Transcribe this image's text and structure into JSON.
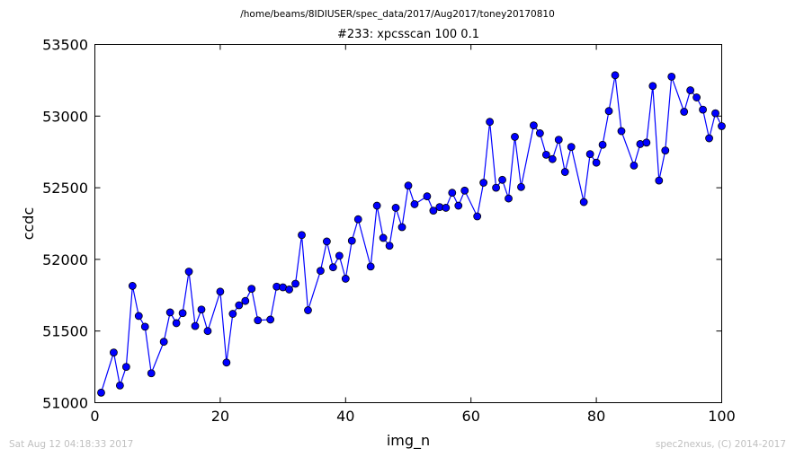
{
  "header": {
    "file_path": "/home/beams/8IDIUSER/spec_data/2017/Aug2017/toney20170810"
  },
  "footer": {
    "timestamp": "Sat Aug 12 04:18:33 2017",
    "credit": "spec2nexus, (C) 2014-2017"
  },
  "colors": {
    "series_line": "#0000ff",
    "marker_fill": "#0000ff",
    "marker_edge": "#000000",
    "frame": "#000000",
    "background": "#ffffff",
    "footer_text": "#c0c0c0"
  },
  "chart_data": {
    "type": "line",
    "title": "#233: xpcsscan 100 0.1",
    "xlabel": "img_n",
    "ylabel": "ccdc",
    "xlim": [
      0,
      100
    ],
    "ylim": [
      51000,
      53500
    ],
    "x_ticks": [
      0,
      20,
      40,
      60,
      80,
      100
    ],
    "y_ticks": [
      51000,
      51500,
      52000,
      52500,
      53000,
      53500
    ],
    "x_tick_labels": [
      "0",
      "20",
      "40",
      "60",
      "80",
      "100"
    ],
    "y_tick_labels": [
      "51000",
      "51500",
      "52000",
      "52500",
      "53000",
      "53500"
    ],
    "grid": false,
    "legend": "none",
    "marker": "circle",
    "series": [
      {
        "x": [
          1,
          3,
          4,
          5,
          6,
          7,
          8,
          9,
          11,
          12,
          13,
          14,
          15,
          16,
          17,
          18,
          20,
          21,
          22,
          23,
          24,
          25,
          26,
          28,
          29,
          30,
          31,
          32,
          33,
          34,
          36,
          37,
          38,
          39,
          40,
          41,
          42,
          44,
          45,
          46,
          47,
          48,
          49,
          50,
          51,
          53,
          54,
          55,
          56,
          57,
          58,
          59,
          61,
          62,
          63,
          64,
          65,
          66,
          67,
          68,
          70,
          71,
          72,
          73,
          74,
          75,
          76,
          78,
          79,
          80,
          81,
          82,
          83,
          84,
          86,
          87,
          88,
          89,
          90,
          91,
          92,
          94,
          95,
          96,
          97,
          98,
          99,
          100
        ],
        "y": [
          51070,
          51350,
          51120,
          51250,
          51815,
          51605,
          51530,
          51205,
          51425,
          51630,
          51555,
          51625,
          51915,
          51535,
          51650,
          51500,
          51775,
          51280,
          51620,
          51680,
          51710,
          51795,
          51575,
          51580,
          51810,
          51805,
          51790,
          51830,
          52170,
          51645,
          51920,
          52125,
          51945,
          52025,
          51865,
          52130,
          52280,
          51950,
          52375,
          52150,
          52095,
          52360,
          52225,
          52515,
          52385,
          52440,
          52340,
          52365,
          52360,
          52465,
          52375,
          52480,
          52300,
          52535,
          52960,
          52500,
          52555,
          52425,
          52855,
          52505,
          52935,
          52880,
          52730,
          52700,
          52835,
          52610,
          52785,
          52400,
          52735,
          52675,
          52800,
          53035,
          53285,
          52895,
          52655,
          52805,
          52815,
          53210,
          52550,
          52760,
          53275,
          53030,
          53180,
          53130,
          53045,
          52845,
          53020,
          52930
        ]
      }
    ]
  }
}
